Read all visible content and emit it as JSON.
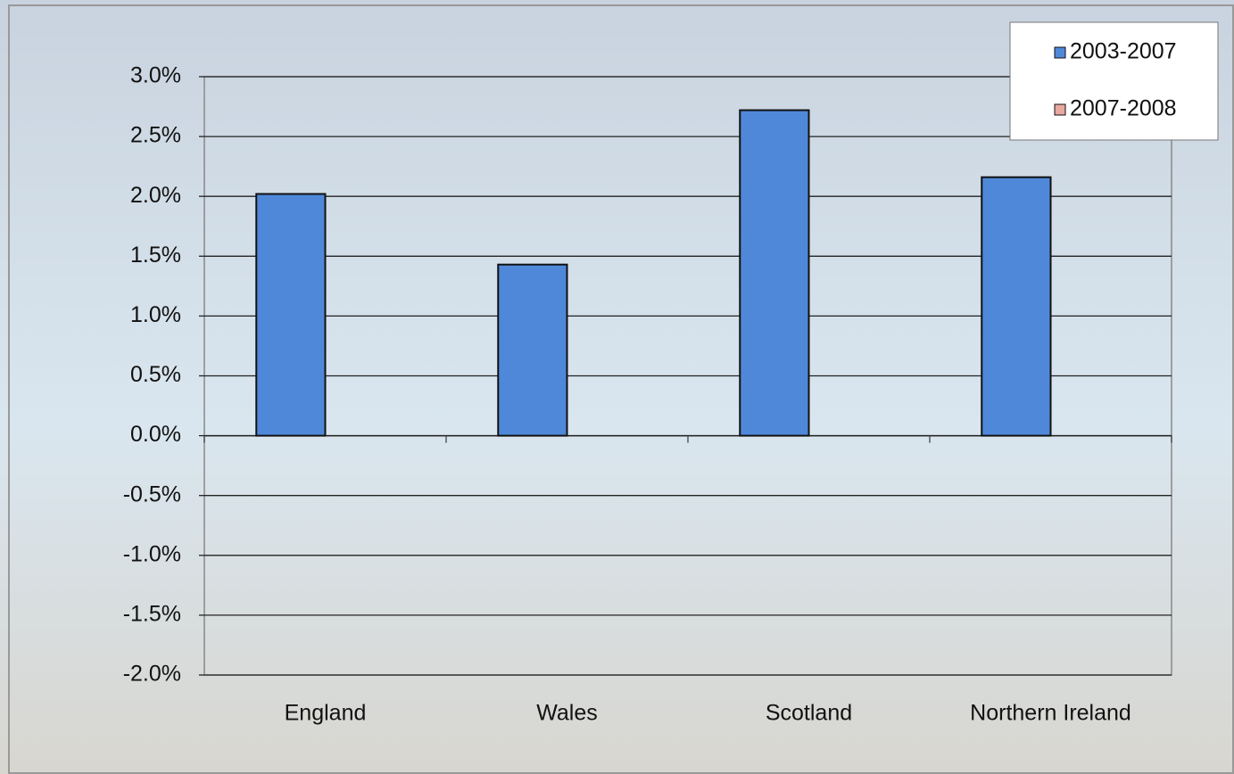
{
  "chart_data": {
    "type": "bar",
    "categories": [
      "England",
      "Wales",
      "Scotland",
      "Northern Ireland"
    ],
    "series": [
      {
        "name": "2003-2007",
        "color": "#4f88d8",
        "values": [
          2.02,
          1.43,
          2.72,
          2.16
        ]
      },
      {
        "name": "2007-2008",
        "color": "#e8a8a0",
        "values": [
          null,
          null,
          null,
          null
        ]
      }
    ],
    "ylim": [
      -2.0,
      3.0
    ],
    "yticks": [
      {
        "value": -2.0,
        "label": "-2.0%"
      },
      {
        "value": -1.5,
        "label": "-1.5%"
      },
      {
        "value": -1.0,
        "label": "-1.0%"
      },
      {
        "value": -0.5,
        "label": "-0.5%"
      },
      {
        "value": 0.0,
        "label": "0.0%"
      },
      {
        "value": 0.5,
        "label": "0.5%"
      },
      {
        "value": 1.0,
        "label": "1.0%"
      },
      {
        "value": 1.5,
        "label": "1.5%"
      },
      {
        "value": 2.0,
        "label": "2.0%"
      },
      {
        "value": 2.5,
        "label": "2.5%"
      },
      {
        "value": 3.0,
        "label": "3.0%"
      }
    ],
    "grid": true,
    "legend": "top-right"
  }
}
